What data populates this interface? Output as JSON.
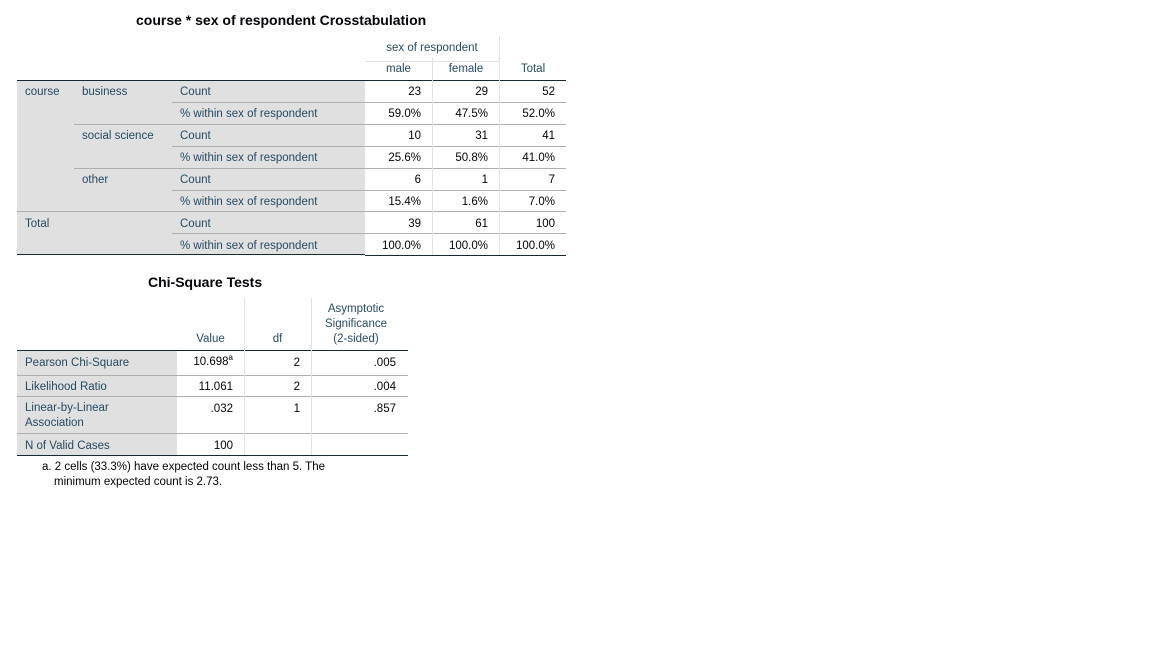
{
  "crosstab": {
    "title": "course * sex of respondent Crosstabulation",
    "header": {
      "group": "sex of respondent",
      "male": "male",
      "female": "female",
      "total": "Total"
    },
    "row_var": "course",
    "groups": [
      {
        "label": "business",
        "rows": [
          {
            "stat": "Count",
            "male": "23",
            "female": "29",
            "total": "52"
          },
          {
            "stat": "% within sex of respondent",
            "male": "59.0%",
            "female": "47.5%",
            "total": "52.0%"
          }
        ]
      },
      {
        "label": "social science",
        "rows": [
          {
            "stat": "Count",
            "male": "10",
            "female": "31",
            "total": "41"
          },
          {
            "stat": "% within sex of respondent",
            "male": "25.6%",
            "female": "50.8%",
            "total": "41.0%"
          }
        ]
      },
      {
        "label": "other",
        "rows": [
          {
            "stat": "Count",
            "male": "6",
            "female": "1",
            "total": "7"
          },
          {
            "stat": "% within sex of respondent",
            "male": "15.4%",
            "female": "1.6%",
            "total": "7.0%"
          }
        ]
      }
    ],
    "total": {
      "label": "Total",
      "rows": [
        {
          "stat": "Count",
          "male": "39",
          "female": "61",
          "total": "100"
        },
        {
          "stat": "% within sex of respondent",
          "male": "100.0%",
          "female": "100.0%",
          "total": "100.0%"
        }
      ]
    }
  },
  "chisq": {
    "title": "Chi-Square Tests",
    "header": {
      "value": "Value",
      "df": "df",
      "sig_line1": "Asymptotic",
      "sig_line2": "Significance",
      "sig_line3": "(2-sided)"
    },
    "rows": [
      {
        "label": "Pearson Chi-Square",
        "value": "10.698",
        "value_sup": "a",
        "df": "2",
        "sig": ".005"
      },
      {
        "label": "Likelihood Ratio",
        "value": "11.061",
        "df": "2",
        "sig": ".004"
      },
      {
        "label_line1": "Linear-by-Linear",
        "label_line2": "Association",
        "value": ".032",
        "df": "1",
        "sig": ".857"
      },
      {
        "label": "N of Valid Cases",
        "value": "100",
        "df": "",
        "sig": ""
      }
    ],
    "footnote_line1": "a. 2 cells (33.3%) have expected count less than 5. The",
    "footnote_line2": "minimum expected count is 2.73."
  }
}
